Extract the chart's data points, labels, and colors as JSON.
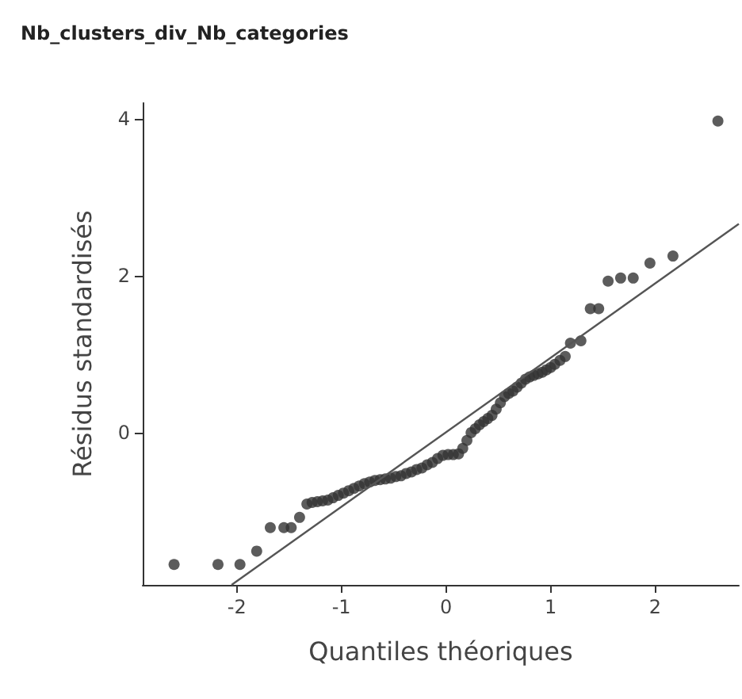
{
  "chart_data": {
    "type": "scatter",
    "title": "Nb_clusters_div_Nb_categories",
    "xlabel": "Quantiles théoriques",
    "ylabel": "Résidus standardisés",
    "xlim": [
      -2.9,
      2.8
    ],
    "ylim": [
      -1.94,
      4.2
    ],
    "xticks": [
      -2,
      -1,
      0,
      1,
      2
    ],
    "yticks": [
      0,
      2,
      4
    ],
    "grid": false,
    "marker": "circle",
    "series": [
      {
        "color": "#333333",
        "x": [
          -2.6,
          -2.18,
          -1.97,
          -1.81,
          -1.68,
          -1.55,
          -1.48,
          -1.4,
          -1.33,
          -1.28,
          -1.23,
          -1.18,
          -1.13,
          -1.08,
          -1.03,
          -0.98,
          -0.93,
          -0.88,
          -0.83,
          -0.78,
          -0.73,
          -0.68,
          -0.63,
          -0.58,
          -0.53,
          -0.48,
          -0.43,
          -0.38,
          -0.33,
          -0.28,
          -0.23,
          -0.18,
          -0.13,
          -0.08,
          -0.03,
          0.02,
          0.07,
          0.12,
          0.16,
          0.2,
          0.24,
          0.28,
          0.32,
          0.36,
          0.4,
          0.44,
          0.48,
          0.52,
          0.56,
          0.6,
          0.64,
          0.68,
          0.72,
          0.76,
          0.8,
          0.84,
          0.88,
          0.92,
          0.96,
          1.0,
          1.04,
          1.09,
          1.14,
          1.19,
          1.29,
          1.38,
          1.46,
          1.55,
          1.67,
          1.79,
          1.95,
          2.17,
          2.6
        ],
        "values": [
          -1.68,
          -1.68,
          -1.68,
          -1.51,
          -1.21,
          -1.21,
          -1.21,
          -1.08,
          -0.91,
          -0.89,
          -0.88,
          -0.87,
          -0.86,
          -0.83,
          -0.8,
          -0.77,
          -0.74,
          -0.71,
          -0.68,
          -0.65,
          -0.63,
          -0.61,
          -0.6,
          -0.59,
          -0.58,
          -0.56,
          -0.55,
          -0.52,
          -0.5,
          -0.47,
          -0.45,
          -0.41,
          -0.38,
          -0.33,
          -0.29,
          -0.28,
          -0.28,
          -0.27,
          -0.2,
          -0.1,
          0.0,
          0.05,
          0.1,
          0.14,
          0.18,
          0.22,
          0.3,
          0.38,
          0.46,
          0.5,
          0.53,
          0.58,
          0.63,
          0.68,
          0.71,
          0.73,
          0.75,
          0.77,
          0.8,
          0.83,
          0.87,
          0.92,
          0.97,
          1.14,
          1.17,
          1.58,
          1.58,
          1.93,
          1.97,
          1.97,
          2.16,
          2.25,
          3.97
        ]
      },
      {
        "type": "line",
        "color": "#555555",
        "marker": "none",
        "line_style": "solid",
        "x": [
          -2.05,
          2.8
        ],
        "values": [
          -1.94,
          2.66
        ]
      }
    ]
  }
}
